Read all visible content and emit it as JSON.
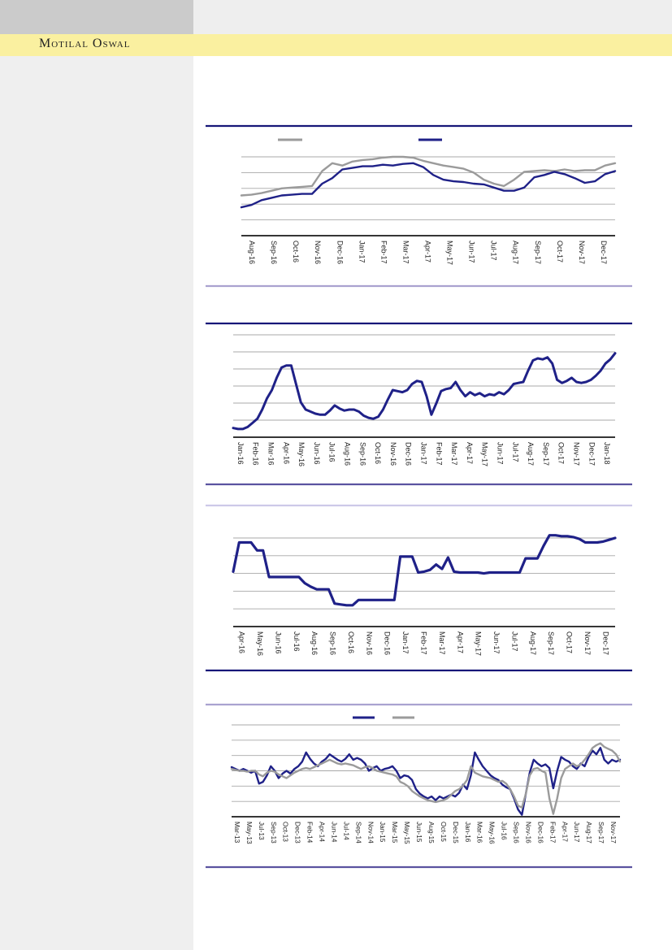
{
  "header": {
    "brand": "Motilal Oswal"
  },
  "page": {
    "palette": {
      "header_gray_block": "#cbcbcb",
      "header_light_block": "#eeeeee",
      "brand_band_yellow": "#faf0a0",
      "sidebar_gray": "#efefef",
      "series_navy": "#1f2188",
      "series_gray": "#9b9b9b",
      "gridline_gray": "#a8a8a8",
      "axis_black": "#1a1a1a",
      "tick_label_color": "#262626",
      "rule_navy": "#161678",
      "rule_lavender": "#aaa2d0",
      "rule_purple": "#5b53a0",
      "rule_light_lavender": "#cdc9e8"
    }
  },
  "chart_data": [
    {
      "type": "line",
      "title": "",
      "xlabel": "",
      "ylabel": "",
      "y_axis_ticks": "none",
      "ylim": [
        0,
        105
      ],
      "grid": true,
      "n_gridlines": 5,
      "x_tick_label_rotation": 90,
      "legend_position": "top",
      "legend": [
        {
          "label": "",
          "color": "#9b9b9b"
        },
        {
          "label": "",
          "color": "#1f2188"
        }
      ],
      "categories": [
        "Aug-16",
        "Sep-16",
        "Oct-16",
        "Nov-16",
        "Dec-16",
        "Jan-17",
        "Feb-17",
        "Mar-17",
        "Apr-17",
        "May-17",
        "Jun-17",
        "Jul-17",
        "Aug-17",
        "Sep-17",
        "Oct-17",
        "Nov-17",
        "Dec-17"
      ],
      "series": [
        {
          "id": "gray",
          "label": "",
          "color": "#9b9b9b",
          "values": [
            51,
            52,
            54,
            57,
            60,
            61,
            62,
            63,
            82,
            92,
            89,
            94,
            96,
            97,
            99,
            100,
            100,
            99,
            95,
            92,
            89,
            87,
            85,
            80,
            71,
            66,
            63,
            71,
            81,
            82,
            83,
            82,
            84,
            82,
            83,
            83,
            89,
            92
          ]
        },
        {
          "id": "navy",
          "label": "",
          "color": "#1f2188",
          "values": [
            36,
            39,
            45,
            48,
            51,
            52,
            53,
            53,
            66,
            73,
            84,
            86,
            88,
            88,
            90,
            89,
            91,
            92,
            87,
            77,
            71,
            69,
            68,
            66,
            65,
            61,
            57,
            57,
            61,
            74,
            77,
            81,
            78,
            73,
            67,
            69,
            78,
            82
          ]
        }
      ]
    },
    {
      "type": "line",
      "title": "",
      "xlabel": "",
      "ylabel": "",
      "y_axis_ticks": "none",
      "ylim": [
        0,
        105
      ],
      "grid": true,
      "n_gridlines": 6,
      "x_tick_label_rotation": 90,
      "legend_position": "none",
      "legend": [],
      "categories": [
        "Jan-16",
        "Feb-16",
        "Mar-16",
        "Apr-16",
        "May-16",
        "Jun-16",
        "Jul-16",
        "Aug-16",
        "Sep-16",
        "Oct-16",
        "Nov-16",
        "Dec-16",
        "Jan-17",
        "Feb-17",
        "Mar-17",
        "Apr-17",
        "May-17",
        "Jun-17",
        "Jul-17",
        "Aug-17",
        "Sep-17",
        "Oct-17",
        "Nov-17",
        "Dec-17",
        "Jan-18"
      ],
      "series": [
        {
          "id": "navy",
          "label": "",
          "color": "#1f2188",
          "values": [
            9,
            8,
            8,
            10,
            14,
            18,
            27,
            38,
            46,
            58,
            68,
            70,
            70,
            52,
            34,
            27,
            25,
            23,
            22,
            22,
            26,
            31,
            28,
            26,
            27,
            27,
            25,
            21,
            19,
            18,
            20,
            27,
            37,
            46,
            45,
            44,
            46,
            52,
            55,
            54,
            40,
            22,
            33,
            45,
            47,
            48,
            54,
            46,
            40,
            44,
            41,
            43,
            40,
            42,
            41,
            44,
            42,
            46,
            52,
            53,
            54,
            65,
            75,
            77,
            76,
            78,
            72,
            56,
            53,
            55,
            58,
            54,
            53,
            54,
            56,
            60,
            65,
            72,
            76,
            82
          ]
        }
      ]
    },
    {
      "type": "line",
      "title": "",
      "xlabel": "",
      "ylabel": "",
      "y_axis_ticks": "none",
      "ylim": [
        0,
        110
      ],
      "grid": true,
      "n_gridlines": 5,
      "x_tick_label_rotation": 90,
      "legend_position": "none",
      "legend": [],
      "categories": [
        "Apr-16",
        "May-16",
        "Jun-16",
        "Jul-16",
        "Aug-16",
        "Sep-16",
        "Oct-16",
        "Nov-16",
        "Dec-16",
        "Jan-17",
        "Feb-17",
        "Mar-17",
        "Apr-17",
        "May-17",
        "Jun-17",
        "Jul-17",
        "Aug-17",
        "Sep-17",
        "Oct-17",
        "Nov-17",
        "Dec-17"
      ],
      "series": [
        {
          "id": "navy",
          "label": "",
          "color": "#1f2188",
          "values": [
            62,
            95,
            95,
            95,
            86,
            86,
            56,
            56,
            56,
            56,
            56,
            56,
            49,
            45,
            42,
            42,
            42,
            26,
            25,
            24,
            24,
            30,
            30,
            30,
            30,
            30,
            30,
            30,
            79,
            79,
            79,
            61,
            62,
            64,
            70,
            65,
            78,
            62,
            61,
            61,
            61,
            61,
            60,
            61,
            61,
            61,
            61,
            61,
            61,
            77,
            77,
            77,
            91,
            103,
            103,
            102,
            102,
            101,
            99,
            95,
            95,
            95,
            96,
            98,
            100
          ]
        }
      ]
    },
    {
      "type": "line",
      "title": "",
      "xlabel": "",
      "ylabel": "",
      "y_axis_ticks": "none",
      "ylim": [
        0,
        105
      ],
      "grid": true,
      "n_gridlines": 6,
      "x_tick_label_rotation": 90,
      "legend_position": "top",
      "legend": [
        {
          "label": "",
          "color": "#1f2188"
        },
        {
          "label": "",
          "color": "#9b9b9b"
        }
      ],
      "categories": [
        "Mar-13",
        "May-13",
        "Jul-13",
        "Sep-13",
        "Oct-13",
        "Dec-13",
        "Feb-14",
        "Apr-14",
        "Jun-14",
        "Jul-14",
        "Sep-14",
        "Nov-14",
        "Jan-15",
        "Mar-15",
        "May-15",
        "Jun-15",
        "Aug-15",
        "Oct-15",
        "Dec-15",
        "Jan-16",
        "Mar-16",
        "May-16",
        "Jul-16",
        "Sep-16",
        "Nov-16",
        "Dec-16",
        "Feb-17",
        "Apr-17",
        "Jun-17",
        "Aug-17",
        "Sep-17",
        "Nov-17"
      ],
      "series": [
        {
          "id": "navy",
          "label": "",
          "color": "#1f2188",
          "values": [
            54,
            52,
            50,
            52,
            50,
            48,
            50,
            36,
            38,
            45,
            55,
            50,
            42,
            47,
            50,
            47,
            52,
            55,
            60,
            70,
            63,
            58,
            55,
            60,
            63,
            68,
            65,
            62,
            60,
            63,
            68,
            62,
            64,
            62,
            58,
            50,
            53,
            55,
            50,
            52,
            53,
            55,
            50,
            42,
            45,
            44,
            40,
            30,
            25,
            22,
            20,
            22,
            18,
            22,
            20,
            22,
            24,
            22,
            26,
            35,
            30,
            45,
            70,
            62,
            55,
            50,
            45,
            42,
            40,
            35,
            32,
            30,
            20,
            8,
            2,
            25,
            48,
            62,
            58,
            55,
            57,
            53,
            31,
            50,
            65,
            62,
            60,
            55,
            52,
            58,
            55,
            65,
            72,
            68,
            75,
            62,
            58,
            62,
            60,
            62
          ]
        },
        {
          "id": "gray",
          "label": "",
          "color": "#9b9b9b",
          "values": [
            52,
            51,
            50,
            50,
            49,
            50,
            50,
            46,
            44,
            48,
            50,
            49,
            46,
            44,
            42,
            45,
            48,
            50,
            52,
            53,
            52,
            54,
            56,
            58,
            60,
            62,
            60,
            58,
            57,
            58,
            57,
            56,
            54,
            52,
            54,
            55,
            53,
            50,
            49,
            48,
            47,
            46,
            44,
            38,
            36,
            33,
            28,
            25,
            22,
            20,
            18,
            17,
            16,
            17,
            18,
            20,
            24,
            28,
            30,
            34,
            40,
            55,
            48,
            46,
            44,
            43,
            42,
            40,
            38,
            39,
            36,
            30,
            22,
            12,
            10,
            25,
            45,
            52,
            53,
            50,
            48,
            20,
            3,
            20,
            42,
            52,
            55,
            58,
            55,
            57,
            62,
            68,
            75,
            78,
            80,
            76,
            74,
            72,
            68,
            60
          ]
        }
      ]
    }
  ]
}
